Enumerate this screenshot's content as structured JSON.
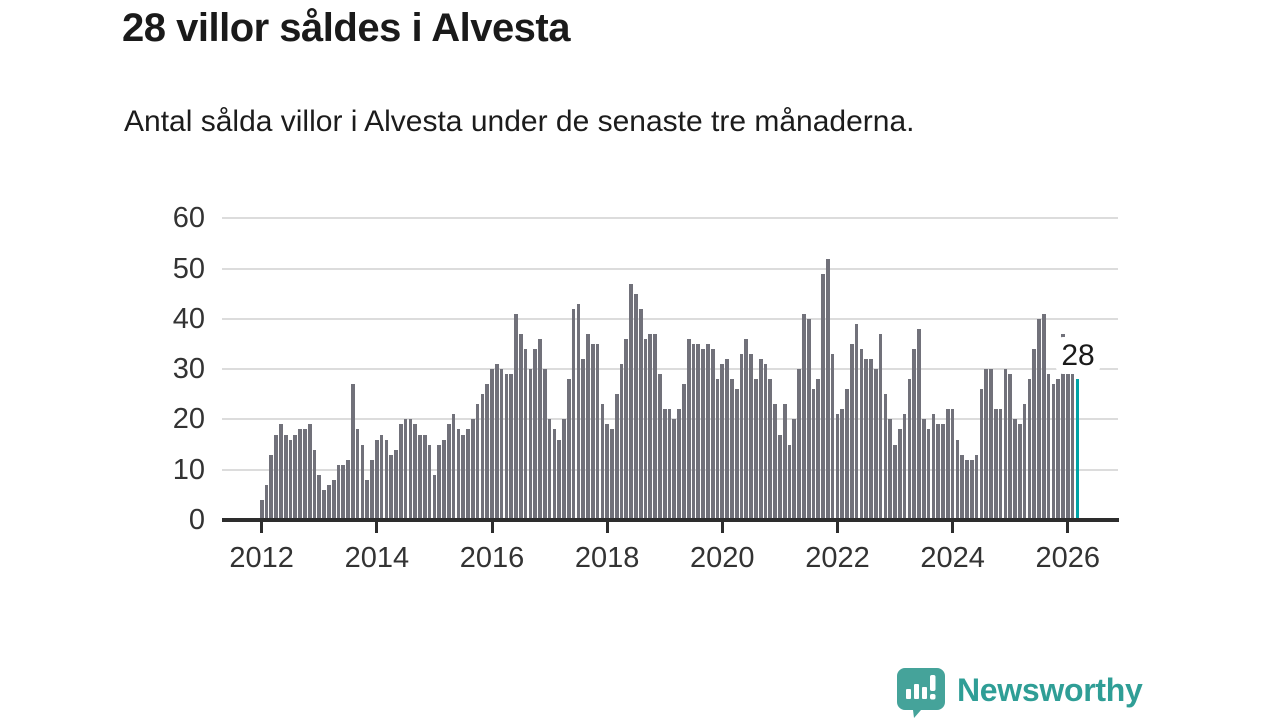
{
  "header": {
    "title": "28 villor såldes i Alvesta",
    "subtitle": "Antal sålda villor i Alvesta under de senaste tre månaderna."
  },
  "chart_data": {
    "type": "bar",
    "title": "28 villor såldes i Alvesta",
    "subtitle": "Antal sålda villor i Alvesta under de senaste tre månaderna.",
    "x_start": "2012-01",
    "x_end": "2026-03",
    "x_tick_labels": [
      "2012",
      "2014",
      "2016",
      "2018",
      "2020",
      "2022",
      "2024",
      "2026"
    ],
    "y_ticks": [
      0,
      10,
      20,
      30,
      40,
      50,
      60
    ],
    "ylim": [
      0,
      60
    ],
    "grid": true,
    "values": [
      4,
      7,
      13,
      17,
      19,
      17,
      16,
      17,
      18,
      18,
      19,
      14,
      9,
      6,
      7,
      8,
      11,
      11,
      12,
      27,
      18,
      15,
      8,
      12,
      16,
      17,
      16,
      13,
      14,
      19,
      20,
      20,
      19,
      17,
      17,
      15,
      9,
      15,
      16,
      19,
      21,
      18,
      17,
      18,
      20,
      23,
      25,
      27,
      30,
      31,
      30,
      29,
      29,
      41,
      37,
      34,
      30,
      34,
      36,
      30,
      20,
      18,
      16,
      20,
      28,
      42,
      43,
      32,
      37,
      35,
      35,
      23,
      19,
      18,
      25,
      31,
      36,
      47,
      45,
      42,
      36,
      37,
      37,
      29,
      22,
      22,
      20,
      22,
      27,
      36,
      35,
      35,
      34,
      35,
      34,
      28,
      31,
      32,
      28,
      26,
      33,
      36,
      33,
      28,
      32,
      31,
      28,
      23,
      17,
      23,
      15,
      20,
      30,
      41,
      40,
      26,
      28,
      49,
      52,
      33,
      21,
      22,
      26,
      35,
      39,
      34,
      32,
      32,
      30,
      37,
      25,
      20,
      15,
      18,
      21,
      28,
      34,
      38,
      20,
      18,
      21,
      19,
      19,
      22,
      22,
      16,
      13,
      12,
      12,
      13,
      26,
      30,
      30,
      22,
      22,
      30,
      29,
      20,
      19,
      23,
      28,
      34,
      40,
      41,
      29,
      27,
      28,
      37,
      30,
      30,
      28
    ],
    "highlight_index": 170,
    "highlight_label": "28",
    "bar_color": "#71717a",
    "highlight_color": "#00a3a6"
  },
  "branding": {
    "logo_text": "Newsworthy",
    "logo_color": "#2f9e96",
    "logo_icon": "speech-bubble-bar-chart-icon"
  }
}
